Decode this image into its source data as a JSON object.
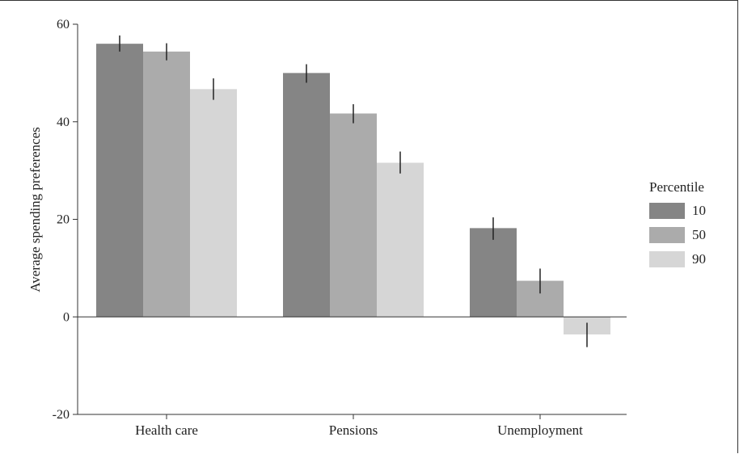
{
  "chart_data": {
    "type": "bar",
    "title": "",
    "xlabel": "",
    "ylabel": "Average spending preferences",
    "ylim": [
      -20,
      60
    ],
    "yticks": [
      -20,
      0,
      20,
      40,
      60
    ],
    "categories": [
      "Health care",
      "Pensions",
      "Unemployment"
    ],
    "legend": {
      "title": "Percentile",
      "placement": "right"
    },
    "series": [
      {
        "name": "10",
        "color": "#858585",
        "values": [
          56,
          50,
          18.2
        ],
        "err_low": [
          54.4,
          48,
          15.8
        ],
        "err_high": [
          57.7,
          51.8,
          20.4
        ]
      },
      {
        "name": "50",
        "color": "#ababab",
        "values": [
          54.4,
          41.7,
          7.4
        ],
        "err_low": [
          52.6,
          39.7,
          4.8
        ],
        "err_high": [
          56.1,
          43.6,
          9.9
        ]
      },
      {
        "name": "90",
        "color": "#d6d6d6",
        "values": [
          46.7,
          31.6,
          -3.6
        ],
        "err_low": [
          44.5,
          29.4,
          -6.2
        ],
        "err_high": [
          48.9,
          33.9,
          -1.2
        ]
      }
    ],
    "grid": false
  }
}
